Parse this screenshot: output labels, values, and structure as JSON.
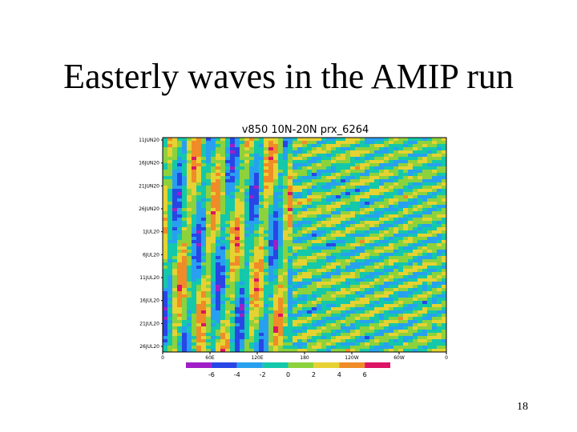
{
  "slide": {
    "title": "Easterly waves in the AMIP run",
    "page_number": "18",
    "figure": {
      "title": "v850  10N-20N  prx_6264",
      "y_labels": [
        "11JUN20",
        "16JUN20",
        "21JUN20",
        "26JUN20",
        "1JUL20",
        "6JUL20",
        "11JUL20",
        "16JUL20",
        "21JUL20",
        "26JUL20"
      ],
      "x_labels": [
        "0",
        "60E",
        "120E",
        "180",
        "120W",
        "60W",
        "0"
      ],
      "colorbar": {
        "colors": [
          "#a01ec8",
          "#2846e6",
          "#28a0f0",
          "#14c8aa",
          "#8cd23c",
          "#e6d232",
          "#f08c28",
          "#dc1464"
        ],
        "labels": [
          "-6",
          "-4",
          "-2",
          "0",
          "2",
          "4",
          "6"
        ]
      }
    }
  }
}
